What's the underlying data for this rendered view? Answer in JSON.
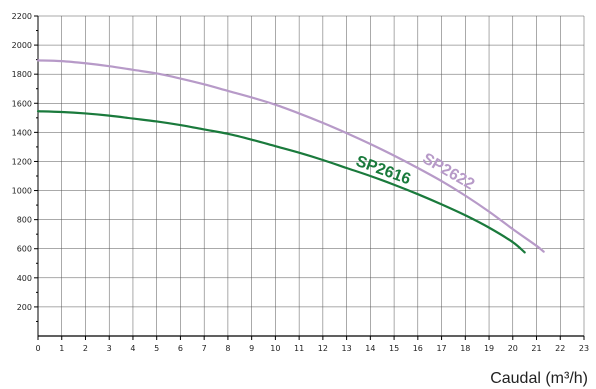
{
  "chart_data": {
    "type": "line",
    "x_ticks": [
      "0",
      "1",
      "2",
      "3",
      "4",
      "5",
      "6",
      "7",
      "8",
      "9",
      "10",
      "11",
      "12",
      "13",
      "14",
      "15",
      "16",
      "17",
      "18",
      "19",
      "20",
      "21",
      "22",
      "23"
    ],
    "y_ticks": [
      "200",
      "400",
      "600",
      "800",
      "1000",
      "1200",
      "1400",
      "1600",
      "1800",
      "2000",
      "2200"
    ],
    "xlim": [
      0,
      23
    ],
    "ylim": [
      0,
      2200
    ],
    "grid": true,
    "xlabel": "Caudal (m³/h)",
    "ylabel": "",
    "series": [
      {
        "name": "SP2616",
        "color": "#1a7a3c",
        "x": [
          0,
          1,
          2,
          3,
          4,
          5,
          6,
          7,
          8,
          9,
          10,
          11,
          12,
          13,
          14,
          15,
          16,
          17,
          18,
          19,
          20,
          20.5
        ],
        "y": [
          1545,
          1540,
          1530,
          1515,
          1495,
          1475,
          1450,
          1420,
          1390,
          1350,
          1305,
          1260,
          1210,
          1155,
          1100,
          1040,
          975,
          905,
          830,
          745,
          645,
          575
        ]
      },
      {
        "name": "SP2622",
        "color": "#b79ac8",
        "x": [
          0,
          1,
          2,
          3,
          4,
          5,
          6,
          7,
          8,
          9,
          10,
          11,
          12,
          13,
          14,
          15,
          16,
          17,
          18,
          19,
          20,
          21,
          21.3
        ],
        "y": [
          1895,
          1890,
          1875,
          1855,
          1830,
          1805,
          1770,
          1730,
          1685,
          1640,
          1590,
          1530,
          1465,
          1395,
          1320,
          1240,
          1155,
          1065,
          965,
          855,
          735,
          620,
          580
        ]
      }
    ]
  }
}
